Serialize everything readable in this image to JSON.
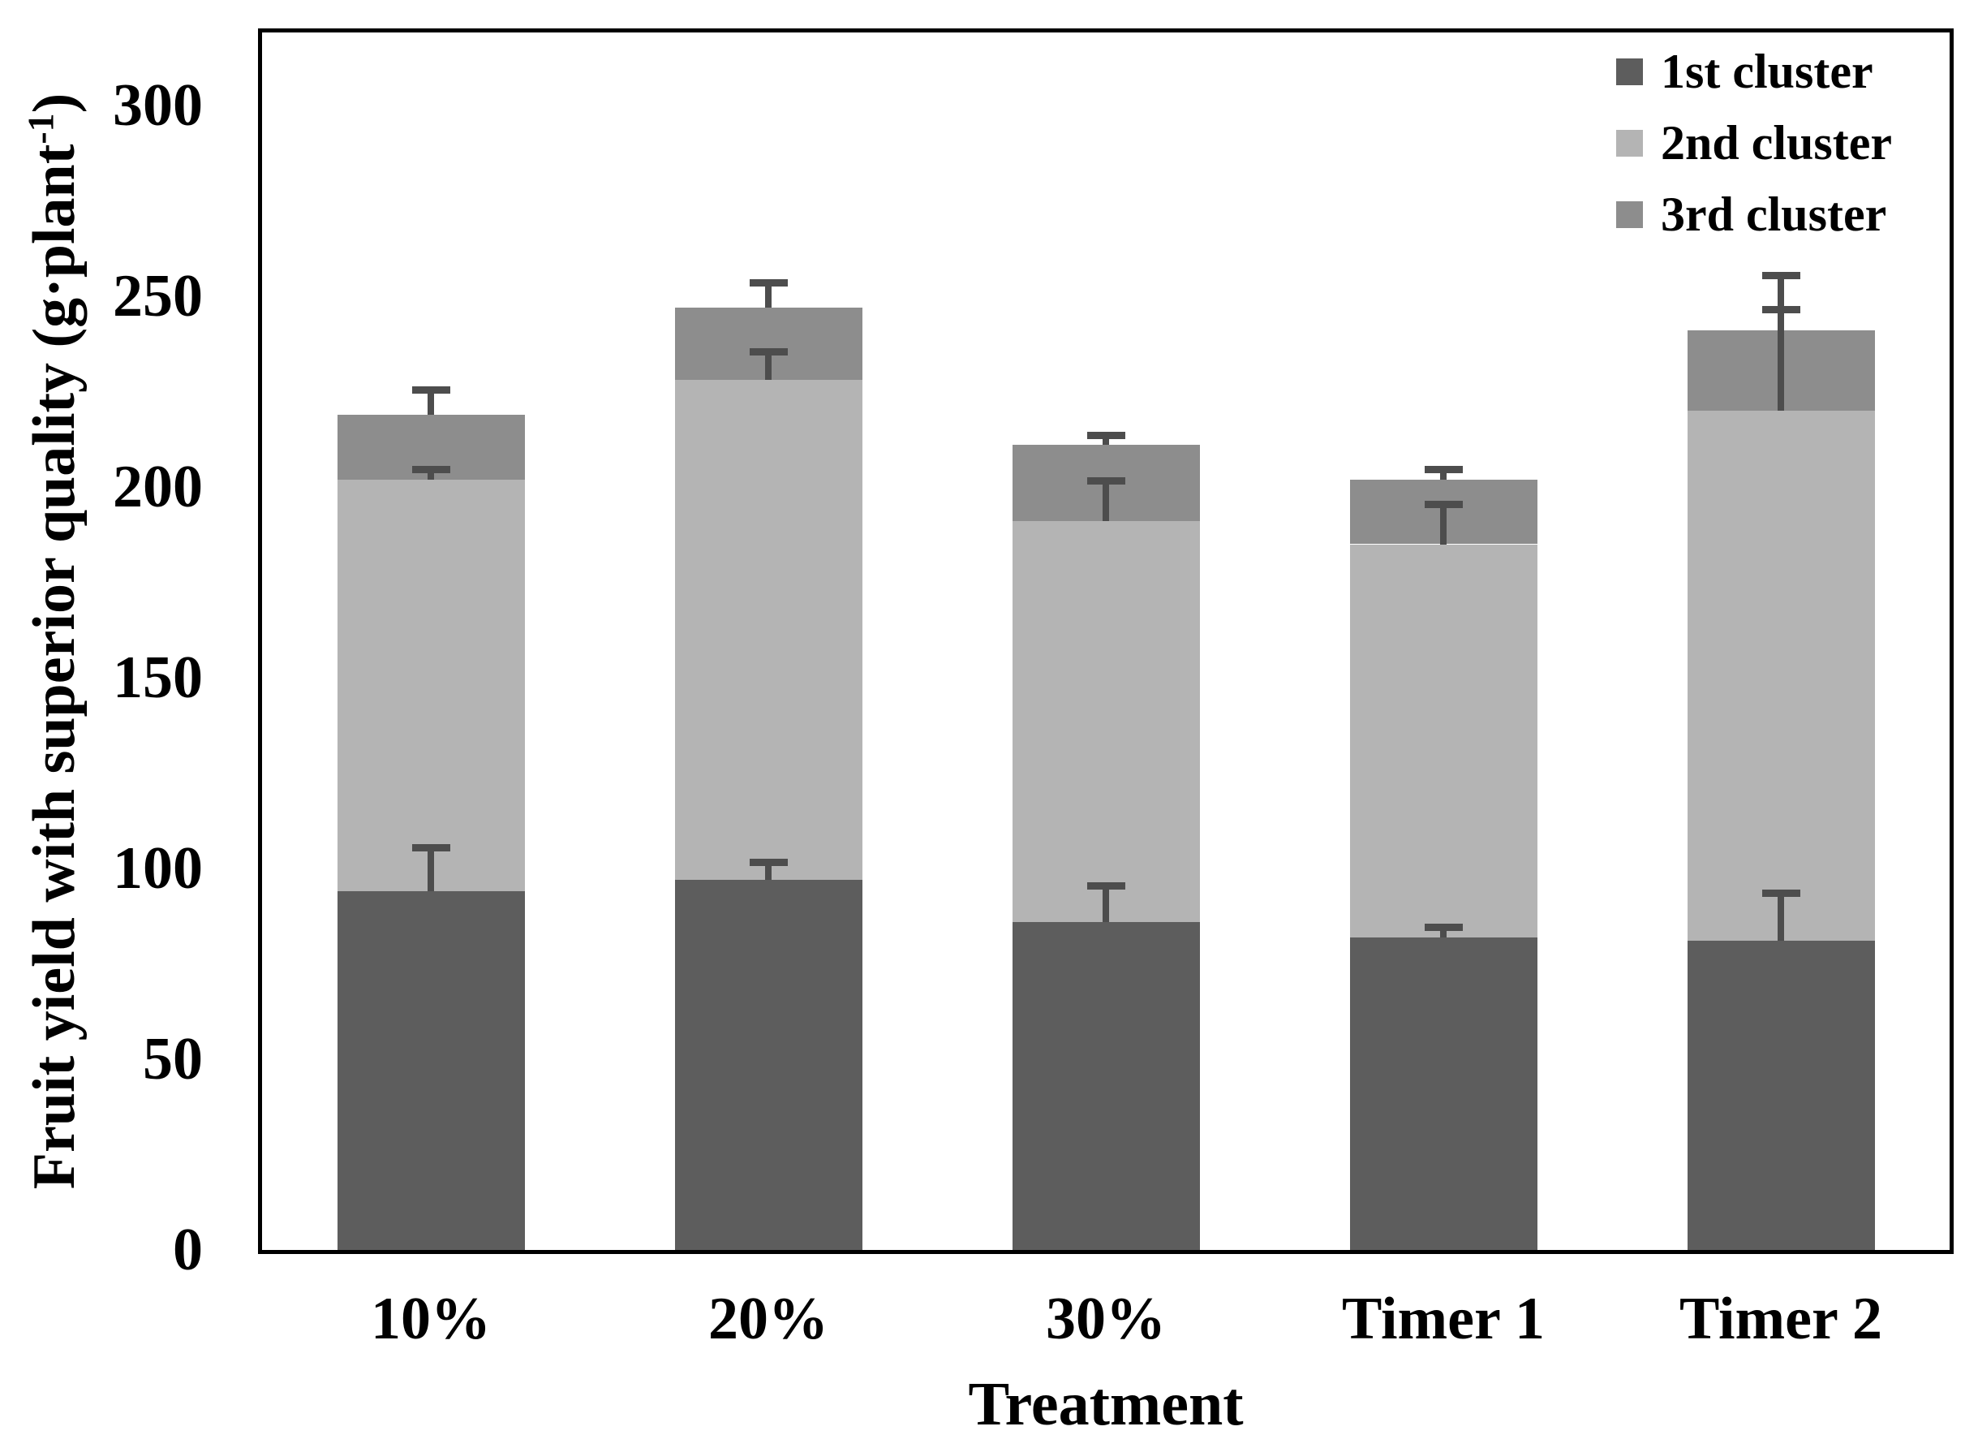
{
  "chart_data": {
    "type": "bar",
    "stacked": true,
    "title": "",
    "xlabel": "Treatment",
    "ylabel": "Fruit yield with superior quality (g·plant⁻¹)",
    "ylabel_parts": {
      "pre": "Fruit yield with superior quality (g·plant",
      "sup": "-1",
      "post": ")"
    },
    "categories": [
      "10%",
      "20%",
      "30%",
      "Timer 1",
      "Timer 2"
    ],
    "series": [
      {
        "name": "1st cluster",
        "color": "#5d5d5d",
        "values": [
          94,
          97,
          86,
          82,
          81
        ],
        "errors_upper": [
          11,
          4,
          9,
          2,
          12
        ]
      },
      {
        "name": "2nd cluster",
        "color": "#b4b4b4",
        "values": [
          108,
          131,
          105,
          103,
          139
        ],
        "errors_upper": [
          2,
          7,
          10,
          10,
          26
        ]
      },
      {
        "name": "3rd cluster",
        "color": "#8d8d8d",
        "values": [
          17,
          19,
          20,
          17,
          21
        ],
        "errors_upper": [
          6,
          6,
          2,
          2,
          14
        ]
      }
    ],
    "cumulative_tops": {
      "10%": [
        94,
        202,
        219
      ],
      "20%": [
        97,
        228,
        247
      ],
      "30%": [
        86,
        191,
        211
      ],
      "Timer 1": [
        82,
        185,
        202
      ],
      "Timer 2": [
        81,
        220,
        241
      ]
    },
    "y_ticks": [
      0,
      50,
      100,
      150,
      200,
      250,
      300
    ],
    "ylim": [
      0,
      319
    ],
    "grid": false,
    "legend_position": "top-right-inside",
    "error_bar_color": "#4d4d4d",
    "axis_color": "#000000",
    "background_color": "#ffffff"
  }
}
